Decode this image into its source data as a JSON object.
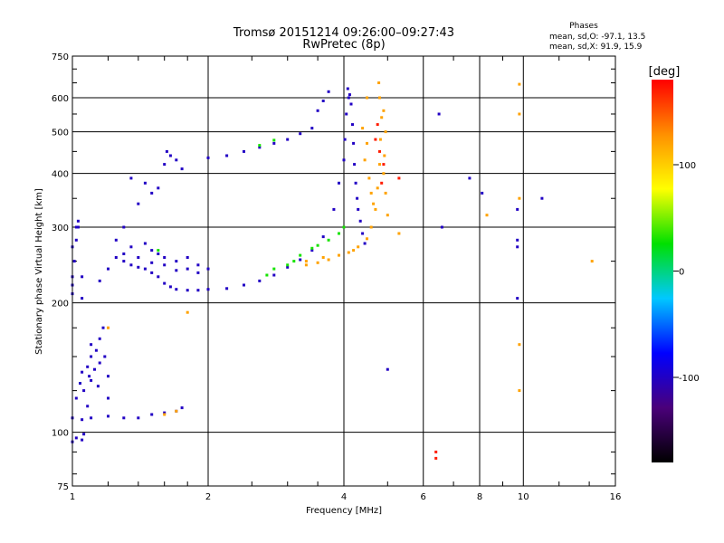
{
  "chart_data": {
    "type": "scatter",
    "title": "Tromsø 20151214 09:26:00–09:27:43",
    "subtitle": "RwPretec (8p)",
    "info": {
      "heading": "Phases",
      "line_o": "mean, sd,O: -97.1, 13.5",
      "line_x": "mean, sd,X:  91.9, 15.9"
    },
    "xlabel": "Frequency [MHz]",
    "ylabel": "Stationary phase Virtual Height [km]",
    "x_scale": "log",
    "y_scale": "log",
    "xlim": [
      1,
      16
    ],
    "ylim": [
      75,
      750
    ],
    "x_ticks": [
      1,
      2,
      4,
      6,
      8,
      10,
      16
    ],
    "x_minor_ticks": [
      1.2,
      1.4,
      1.6,
      1.8,
      2.5,
      3,
      3.5,
      5,
      7,
      9,
      12,
      14
    ],
    "y_ticks": [
      75,
      100,
      200,
      300,
      400,
      500,
      600,
      750
    ],
    "y_minor_ticks": [
      80,
      90,
      125,
      150,
      175,
      250,
      350,
      450,
      550,
      650,
      700
    ],
    "grid": true,
    "colorbar": {
      "label": "[deg]",
      "min": -180,
      "max": 180,
      "ticks": [
        100,
        0,
        -100
      ],
      "colors": [
        "#000000",
        "#4a007a",
        "#0000ff",
        "#00c8ff",
        "#00e000",
        "#ffff00",
        "#ff9000",
        "#ff0000"
      ]
    },
    "series": [
      {
        "color_value": -100,
        "points": [
          [
            1.0,
            95
          ],
          [
            1.02,
            97
          ],
          [
            1.05,
            96
          ],
          [
            1.06,
            99
          ],
          [
            1.0,
            108
          ],
          [
            1.05,
            107
          ],
          [
            1.1,
            108
          ],
          [
            1.2,
            109
          ],
          [
            1.3,
            108
          ],
          [
            1.4,
            108
          ],
          [
            1.5,
            110
          ],
          [
            1.6,
            111
          ],
          [
            1.7,
            112
          ],
          [
            1.75,
            114
          ],
          [
            1.02,
            120
          ],
          [
            1.04,
            130
          ],
          [
            1.05,
            138
          ],
          [
            1.08,
            142
          ],
          [
            1.1,
            132
          ],
          [
            1.12,
            140
          ],
          [
            1.15,
            145
          ],
          [
            1.18,
            150
          ],
          [
            1.13,
            155
          ],
          [
            1.1,
            160
          ],
          [
            1.15,
            165
          ],
          [
            1.17,
            175
          ],
          [
            1.06,
            125
          ],
          [
            1.09,
            135
          ],
          [
            1.14,
            128
          ],
          [
            1.2,
            120
          ],
          [
            1.2,
            135
          ],
          [
            1.1,
            150
          ],
          [
            1.08,
            115
          ],
          [
            1.0,
            210
          ],
          [
            1.0,
            220
          ],
          [
            1.0,
            230
          ],
          [
            1.01,
            250
          ],
          [
            1.02,
            280
          ],
          [
            1.02,
            300
          ],
          [
            1.03,
            310
          ],
          [
            1.0,
            270
          ],
          [
            1.05,
            230
          ],
          [
            1.05,
            205
          ],
          [
            1.15,
            225
          ],
          [
            1.2,
            240
          ],
          [
            1.25,
            255
          ],
          [
            1.3,
            250
          ],
          [
            1.35,
            245
          ],
          [
            1.4,
            242
          ],
          [
            1.45,
            240
          ],
          [
            1.5,
            235
          ],
          [
            1.55,
            230
          ],
          [
            1.6,
            222
          ],
          [
            1.65,
            218
          ],
          [
            1.7,
            215
          ],
          [
            1.8,
            214
          ],
          [
            1.9,
            214
          ],
          [
            2.0,
            215
          ],
          [
            2.2,
            216
          ],
          [
            2.4,
            220
          ],
          [
            2.6,
            225
          ],
          [
            2.8,
            232
          ],
          [
            3.0,
            242
          ],
          [
            3.2,
            252
          ],
          [
            3.4,
            265
          ],
          [
            3.6,
            285
          ],
          [
            3.8,
            330
          ],
          [
            3.9,
            380
          ],
          [
            4.0,
            430
          ],
          [
            4.02,
            480
          ],
          [
            4.05,
            550
          ],
          [
            4.1,
            600
          ],
          [
            4.08,
            630
          ],
          [
            4.12,
            610
          ],
          [
            4.15,
            580
          ],
          [
            4.18,
            520
          ],
          [
            4.2,
            470
          ],
          [
            4.22,
            420
          ],
          [
            4.25,
            380
          ],
          [
            4.28,
            350
          ],
          [
            4.3,
            330
          ],
          [
            4.35,
            310
          ],
          [
            4.4,
            290
          ],
          [
            4.45,
            275
          ],
          [
            1.3,
            260
          ],
          [
            1.35,
            270
          ],
          [
            1.4,
            255
          ],
          [
            1.5,
            248
          ],
          [
            1.55,
            260
          ],
          [
            1.6,
            245
          ],
          [
            1.7,
            238
          ],
          [
            1.8,
            240
          ],
          [
            1.9,
            235
          ],
          [
            1.25,
            280
          ],
          [
            1.45,
            275
          ],
          [
            1.5,
            265
          ],
          [
            1.6,
            255
          ],
          [
            1.7,
            250
          ],
          [
            1.8,
            255
          ],
          [
            1.9,
            245
          ],
          [
            2.0,
            240
          ],
          [
            1.4,
            340
          ],
          [
            1.45,
            380
          ],
          [
            1.5,
            360
          ],
          [
            1.55,
            370
          ],
          [
            1.6,
            420
          ],
          [
            1.62,
            450
          ],
          [
            1.65,
            440
          ],
          [
            1.7,
            430
          ],
          [
            1.75,
            410
          ],
          [
            2.0,
            435
          ],
          [
            2.2,
            440
          ],
          [
            2.4,
            450
          ],
          [
            2.6,
            460
          ],
          [
            2.8,
            470
          ],
          [
            3.0,
            480
          ],
          [
            3.2,
            495
          ],
          [
            3.4,
            510
          ],
          [
            3.5,
            560
          ],
          [
            3.6,
            590
          ],
          [
            3.7,
            620
          ],
          [
            1.03,
            300
          ],
          [
            1.3,
            300
          ],
          [
            1.35,
            390
          ],
          [
            5.0,
            140
          ],
          [
            6.5,
            550
          ],
          [
            6.6,
            300
          ],
          [
            7.6,
            390
          ],
          [
            8.1,
            360
          ],
          [
            9.7,
            330
          ],
          [
            9.7,
            280
          ],
          [
            9.7,
            270
          ],
          [
            11,
            350
          ],
          [
            9.7,
            205
          ]
        ]
      },
      {
        "color_value": 120,
        "points": [
          [
            3.3,
            245
          ],
          [
            3.5,
            248
          ],
          [
            3.7,
            252
          ],
          [
            3.9,
            258
          ],
          [
            4.1,
            262
          ],
          [
            4.3,
            270
          ],
          [
            4.5,
            282
          ],
          [
            4.6,
            300
          ],
          [
            4.7,
            330
          ],
          [
            4.75,
            370
          ],
          [
            4.8,
            420
          ],
          [
            4.82,
            480
          ],
          [
            4.85,
            540
          ],
          [
            4.8,
            600
          ],
          [
            4.78,
            650
          ],
          [
            4.9,
            560
          ],
          [
            4.95,
            500
          ],
          [
            4.92,
            440
          ],
          [
            4.9,
            400
          ],
          [
            4.95,
            360
          ],
          [
            5.0,
            320
          ],
          [
            4.4,
            510
          ],
          [
            4.5,
            470
          ],
          [
            4.45,
            430
          ],
          [
            4.55,
            390
          ],
          [
            4.6,
            360
          ],
          [
            4.65,
            340
          ],
          [
            4.5,
            600
          ],
          [
            1.2,
            175
          ],
          [
            1.6,
            110
          ],
          [
            1.7,
            112
          ],
          [
            1.8,
            190
          ],
          [
            3.3,
            250
          ],
          [
            3.6,
            255
          ],
          [
            4.2,
            265
          ],
          [
            5.3,
            290
          ],
          [
            9.8,
            645
          ],
          [
            9.8,
            550
          ],
          [
            9.8,
            350
          ],
          [
            9.8,
            160
          ],
          [
            9.8,
            125
          ],
          [
            8.3,
            320
          ],
          [
            14.2,
            250
          ]
        ]
      },
      {
        "color_value": 170,
        "points": [
          [
            4.7,
            480
          ],
          [
            4.8,
            450
          ],
          [
            4.9,
            420
          ],
          [
            4.75,
            520
          ],
          [
            4.85,
            380
          ],
          [
            5.3,
            390
          ],
          [
            6.4,
            90
          ],
          [
            6.4,
            87
          ]
        ]
      },
      {
        "color_value": 30,
        "points": [
          [
            2.8,
            240
          ],
          [
            3.0,
            245
          ],
          [
            2.7,
            232
          ],
          [
            3.1,
            250
          ],
          [
            3.2,
            258
          ],
          [
            3.4,
            268
          ],
          [
            3.5,
            272
          ],
          [
            3.7,
            280
          ],
          [
            3.9,
            290
          ],
          [
            4.0,
            300
          ],
          [
            1.55,
            265
          ],
          [
            2.6,
            465
          ],
          [
            2.8,
            478
          ]
        ]
      }
    ]
  }
}
